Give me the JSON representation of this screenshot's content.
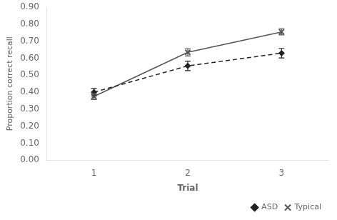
{
  "chart_data": {
    "type": "line",
    "xlabel": "Trial",
    "ylabel": "Proportion correct recall",
    "x": [
      1,
      2,
      3
    ],
    "series": [
      {
        "name": "ASD",
        "color": "#222222",
        "marker": "diamond",
        "line_style": "dashed",
        "values": [
          0.4,
          0.555,
          0.63
        ],
        "errors": [
          0.022,
          0.028,
          0.028
        ]
      },
      {
        "name": "Typical",
        "color": "#555555",
        "marker": "x",
        "line_style": "solid",
        "values": [
          0.375,
          0.635,
          0.755
        ],
        "errors": [
          0.018,
          0.022,
          0.018
        ]
      }
    ],
    "xlim": [
      0.5,
      3.5
    ],
    "xticks": [
      1,
      2,
      3
    ],
    "ylim": [
      0.0,
      0.9
    ],
    "yticks": [
      {
        "value": 0.0,
        "label": "0.00"
      },
      {
        "value": 0.1,
        "label": "0.10"
      },
      {
        "value": 0.2,
        "label": "0.20"
      },
      {
        "value": 0.3,
        "label": "0.30"
      },
      {
        "value": 0.4,
        "label": "0.40"
      },
      {
        "value": 0.5,
        "label": "0.50"
      },
      {
        "value": 0.6,
        "label": "0.60"
      },
      {
        "value": 0.7,
        "label": "0.70"
      },
      {
        "value": 0.8,
        "label": "0.80"
      },
      {
        "value": 0.9,
        "label": "0.90"
      }
    ],
    "grid": false,
    "legend": "lower right"
  }
}
